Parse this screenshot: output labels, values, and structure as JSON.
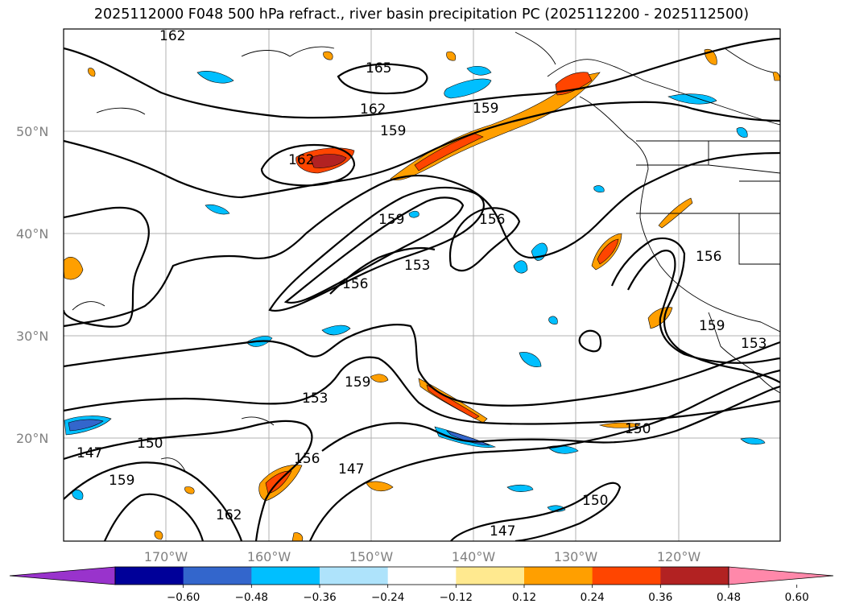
{
  "title": "2025112000 F048 500 hPa refract., river basin precipitation PC (2025112200 - 2025112500)",
  "map": {
    "lat_labels": [
      "50°N",
      "40°N",
      "30°N",
      "20°N"
    ],
    "lon_labels": [
      "170°W",
      "160°W",
      "150°W",
      "140°W",
      "130°W",
      "120°W"
    ],
    "contour_labels": [
      "162",
      "165",
      "162",
      "159",
      "162",
      "159",
      "156",
      "153",
      "156",
      "159",
      "153",
      "159",
      "156",
      "147",
      "150",
      "147",
      "159",
      "162",
      "147",
      "150",
      "156",
      "159",
      "153",
      "150"
    ]
  },
  "colorbar": {
    "ticks": [
      "−0.60",
      "−0.48",
      "−0.36",
      "−0.24",
      "−0.12",
      "0.12",
      "0.24",
      "0.36",
      "0.48",
      "0.60"
    ],
    "colors": [
      "#9933cc",
      "#000099",
      "#3366cc",
      "#00bfff",
      "#aee3fb",
      "#ffffff",
      "#ffe98f",
      "#ff9f00",
      "#ff4500",
      "#b22222",
      "#ff88aa"
    ]
  }
}
